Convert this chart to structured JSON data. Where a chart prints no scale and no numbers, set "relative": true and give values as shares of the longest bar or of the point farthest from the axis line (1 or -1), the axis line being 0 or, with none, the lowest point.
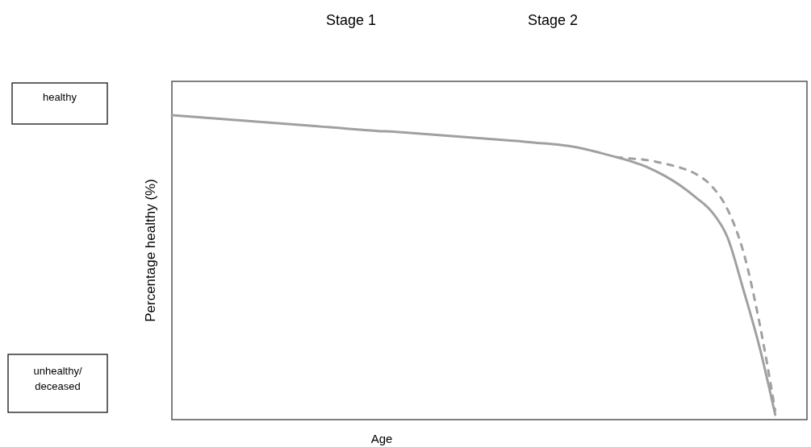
{
  "chart_data": {
    "type": "line",
    "relative": true,
    "xlabel": "Age",
    "ylabel": "Percentage healthy (%)",
    "annotations": [
      "Stage 1",
      "Stage 2",
      "healthy",
      "unhealthy/deceased"
    ],
    "categories": [
      null,
      null,
      null,
      null,
      null,
      null,
      null,
      null,
      null,
      null,
      null,
      null,
      null,
      null,
      null,
      null,
      null,
      null,
      null,
      null,
      null,
      null,
      null,
      null,
      null,
      null,
      null,
      null,
      null,
      null,
      null,
      null,
      null,
      null,
      null,
      null,
      null,
      null,
      null,
      null,
      null
    ],
    "series": [
      {
        "color": "#a0a0a0",
        "line_style": "solid",
        "values": [
          1,
          0.996,
          0.992,
          0.988,
          0.984,
          0.98,
          0.976,
          0.972,
          0.968,
          0.964,
          0.96,
          0.956,
          0.952,
          0.948,
          0.946,
          0.942,
          0.938,
          0.934,
          0.93,
          0.926,
          0.922,
          0.918,
          0.914,
          0.909,
          0.905,
          0.899,
          0.889,
          0.876,
          0.862,
          0.847,
          0.828,
          0.802,
          0.77,
          0.73,
          0.683,
          0.598,
          0.426,
          0.241,
          0.016,
          null,
          null
        ]
      },
      {
        "color": "#a0a0a0",
        "line_style": "dashed",
        "values": [
          null,
          null,
          null,
          null,
          null,
          null,
          null,
          null,
          null,
          null,
          null,
          null,
          null,
          null,
          null,
          null,
          null,
          null,
          null,
          null,
          null,
          null,
          null,
          null,
          null,
          null,
          null,
          null,
          0.862,
          0.857,
          0.852,
          0.841,
          0.828,
          0.807,
          0.767,
          0.69,
          0.55,
          0.32,
          0.029,
          null,
          null
        ]
      }
    ],
    "marker": "none"
  }
}
